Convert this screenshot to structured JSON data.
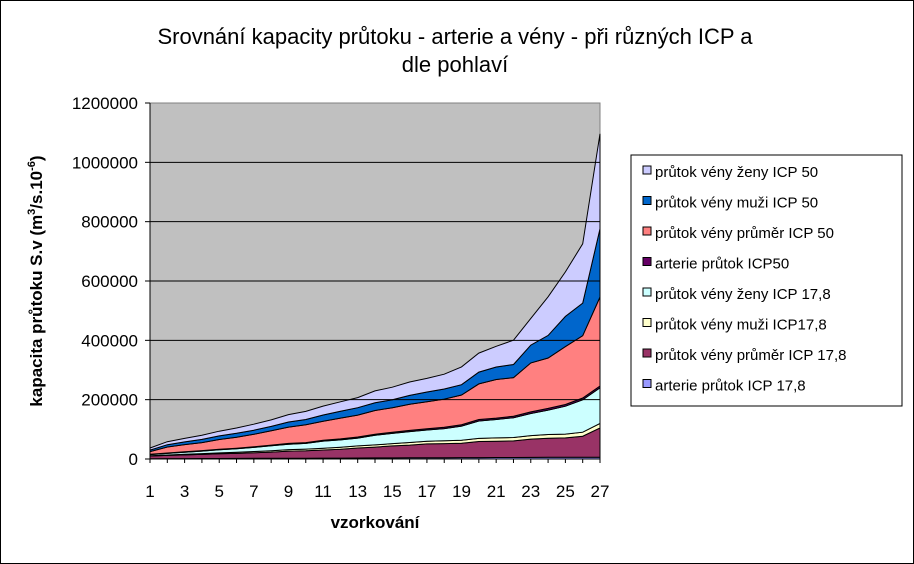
{
  "chart_data": {
    "type": "area",
    "stacked": true,
    "title_line1": "Srovnání kapacity průtoku - arterie a vény - při různých ICP a",
    "title_line2": "dle pohlaví",
    "xlabel": "vzorkování",
    "ylabel_main": "kapacita průtoku S.v (m",
    "ylabel_sup1": "3",
    "ylabel_mid": "/s.10",
    "ylabel_sup2": "-6",
    "ylabel_end": ")",
    "ylim": [
      0,
      1200000
    ],
    "yticks": [
      "0",
      "200000",
      "400000",
      "600000",
      "800000",
      "1000000",
      "1200000"
    ],
    "xticks": [
      "1",
      "3",
      "5",
      "7",
      "9",
      "11",
      "13",
      "15",
      "17",
      "19",
      "21",
      "23",
      "25",
      "27"
    ],
    "x": [
      1,
      2,
      3,
      4,
      5,
      6,
      7,
      8,
      9,
      10,
      11,
      12,
      13,
      14,
      15,
      16,
      17,
      18,
      19,
      20,
      21,
      22,
      23,
      24,
      25,
      26,
      27
    ],
    "plot_background": "#c0c0c0",
    "legend_position": "right",
    "series": [
      {
        "name": "arterie průtok ICP 17,8",
        "color": "#9999ff",
        "values": [
          1000,
          1200,
          1400,
          1600,
          1800,
          2000,
          2200,
          2400,
          2600,
          2800,
          3000,
          3200,
          3400,
          3600,
          3800,
          4000,
          4200,
          4400,
          4600,
          4800,
          5000,
          5200,
          5400,
          5600,
          5800,
          6000,
          6200
        ]
      },
      {
        "name": "průtok vény průměr ICP 17,8",
        "color": "#993366",
        "values": [
          9000,
          10800,
          12500,
          14000,
          15700,
          17000,
          19000,
          21000,
          24000,
          25000,
          27200,
          30000,
          33600,
          36400,
          40200,
          43000,
          46800,
          47600,
          48400,
          54200,
          55000,
          55800,
          61600,
          64400,
          65200,
          71000,
          98800
        ]
      },
      {
        "name": "průtok vény muži ICP17,8",
        "color": "#ffffcc",
        "values": [
          1000,
          1500,
          2000,
          2500,
          3000,
          3500,
          4000,
          4500,
          5000,
          5500,
          6000,
          6500,
          7000,
          7500,
          8000,
          8500,
          9000,
          9500,
          10000,
          10500,
          11000,
          11500,
          12000,
          12500,
          13000,
          13500,
          15000
        ]
      },
      {
        "name": "průtok vény ženy ICP 17,8",
        "color": "#ccffff",
        "values": [
          4000,
          5500,
          7100,
          8400,
          10400,
          12000,
          13800,
          16600,
          18400,
          19200,
          24000,
          24800,
          26600,
          32500,
          34200,
          37000,
          37600,
          41100,
          48000,
          58700,
          62000,
          66700,
          74400,
          82500,
          94000,
          109000,
          120000
        ]
      },
      {
        "name": "arterie průtok ICP50",
        "color": "#660066",
        "values": [
          1000,
          1300,
          1500,
          1700,
          1900,
          2000,
          2200,
          2400,
          2600,
          2800,
          3000,
          3200,
          3400,
          3600,
          3800,
          4000,
          4200,
          4400,
          4600,
          4800,
          5000,
          5200,
          5400,
          5600,
          5800,
          6000,
          6200
        ]
      },
      {
        "name": "průtok vény průměr ICP 50",
        "color": "#ff8080",
        "values": [
          9000,
          20000,
          24000,
          27000,
          33000,
          37000,
          42000,
          48000,
          55000,
          60000,
          64000,
          70000,
          74000,
          80000,
          83000,
          88000,
          91000,
          95000,
          100000,
          120000,
          130000,
          130000,
          165000,
          170000,
          195000,
          210000,
          300000
        ]
      },
      {
        "name": "průtok vény muži ICP 50",
        "color": "#0066cc",
        "values": [
          5000,
          8000,
          9000,
          11000,
          12000,
          13000,
          14000,
          15000,
          17000,
          18000,
          21000,
          23000,
          25000,
          26000,
          27000,
          30000,
          33000,
          34000,
          35000,
          40000,
          42000,
          44000,
          60000,
          76000,
          102000,
          110000,
          230000
        ]
      },
      {
        "name": "průtok vény ženy ICP 50",
        "color": "#ccccff",
        "values": [
          7000,
          10000,
          12000,
          14000,
          16000,
          18000,
          20000,
          22000,
          25000,
          27000,
          30000,
          32000,
          34000,
          40000,
          42000,
          45000,
          46000,
          50000,
          60000,
          64000,
          70000,
          82000,
          90000,
          130000,
          150000,
          200000,
          320000
        ]
      }
    ]
  }
}
